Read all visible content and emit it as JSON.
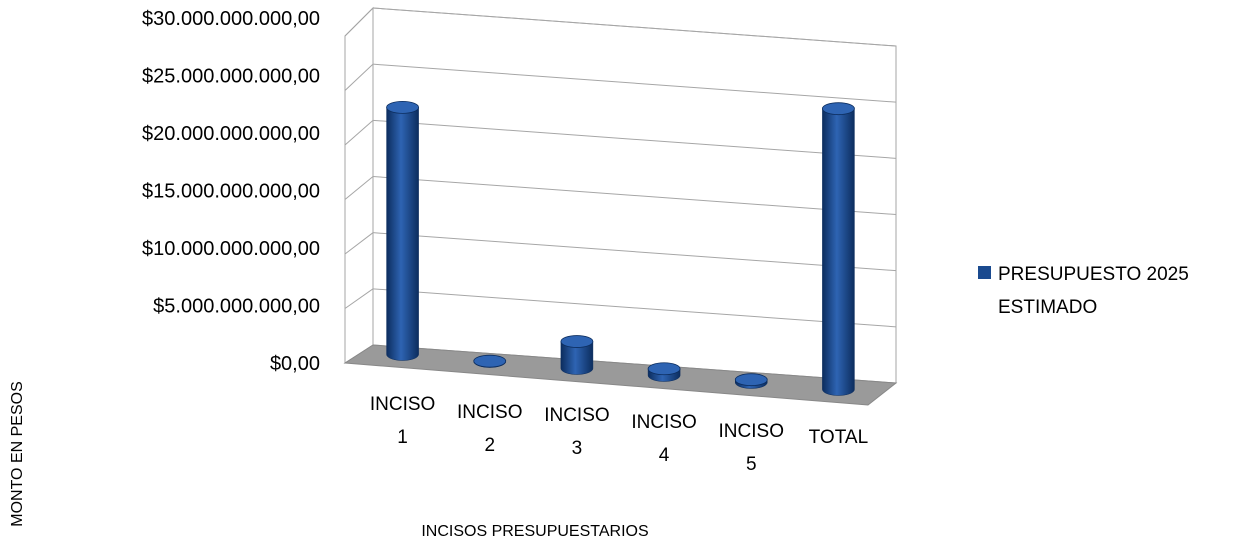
{
  "chart_data": {
    "type": "bar",
    "subtype": "3d-cylinder",
    "title": "",
    "xlabel": "INCISOS PRESUPUESTARIOS",
    "ylabel": "MONTO EN PESOS",
    "ylim": [
      0,
      30000000000
    ],
    "y_ticks": [
      {
        "value": 0,
        "label": "$0,00"
      },
      {
        "value": 5000000000,
        "label": "$5.000.000.000,00"
      },
      {
        "value": 10000000000,
        "label": "$10.000.000.000,00"
      },
      {
        "value": 15000000000,
        "label": "$15.000.000.000,00"
      },
      {
        "value": 20000000000,
        "label": "$20.000.000.000,00"
      },
      {
        "value": 25000000000,
        "label": "$25.000.000.000,00"
      },
      {
        "value": 30000000000,
        "label": "$30.000.000.000,00"
      }
    ],
    "categories": [
      [
        "INCISO",
        "1"
      ],
      [
        "INCISO",
        "2"
      ],
      [
        "INCISO",
        "3"
      ],
      [
        "INCISO",
        "4"
      ],
      [
        "INCISO",
        "5"
      ],
      [
        "TOTAL"
      ]
    ],
    "series": [
      {
        "name": "PRESUPUESTO 2025 ESTIMADO",
        "legend_lines": [
          "PRESUPUESTO 2025",
          "ESTIMADO"
        ],
        "values": [
          22000000000,
          30000000,
          2400000000,
          600000000,
          250000000,
          25000000000
        ]
      }
    ],
    "grid": true,
    "legend_position": "right",
    "colors": {
      "bar": "#1a4a8f",
      "bar_dark": "#0c2d5e",
      "bar_light": "#2e64b3",
      "floor": "#9a9a9a",
      "grid": "#a6a6a6"
    }
  }
}
